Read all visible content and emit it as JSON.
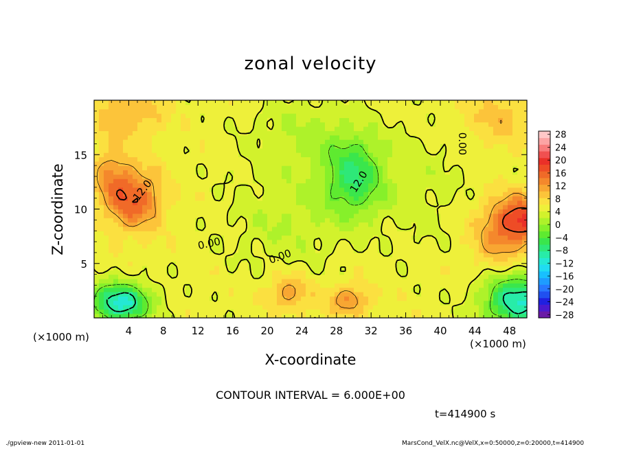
{
  "header": {
    "title": "zonal velocity"
  },
  "chart_data": {
    "type": "heatmap",
    "title": "zonal velocity",
    "xlabel": "X-coordinate",
    "ylabel": "Z-coordinate",
    "x_unit": "(×1000 m)",
    "xlim": [
      0,
      50
    ],
    "ylim": [
      0,
      20
    ],
    "x_ticks": [
      4,
      8,
      12,
      16,
      20,
      24,
      28,
      32,
      36,
      40,
      44,
      48
    ],
    "x_tick_labels": [
      "4",
      "8",
      "12",
      "16",
      "20",
      "24",
      "28",
      "32",
      "36",
      "40",
      "44",
      "48"
    ],
    "y_ticks": [
      5,
      10,
      15
    ],
    "y_tick_labels": [
      "5",
      "10",
      "15"
    ],
    "colorbar": {
      "levels": [
        -30,
        -28,
        -26,
        -24,
        -22,
        -20,
        -18,
        -16,
        -14,
        -12,
        -10,
        -8,
        -6,
        -4,
        -2,
        0,
        2,
        4,
        6,
        8,
        10,
        12,
        14,
        16,
        18,
        20,
        22,
        24,
        26,
        28,
        30
      ],
      "tick_values": [
        -28,
        -24,
        -20,
        -16,
        -12,
        -8,
        -4,
        0,
        4,
        8,
        12,
        16,
        20,
        24,
        28
      ],
      "tick_labels": [
        "−28",
        "−24",
        "−20",
        "−16",
        "−12",
        "−8",
        "−4",
        "0",
        "4",
        "8",
        "12",
        "16",
        "20",
        "24",
        "28"
      ]
    },
    "contour_labels": [
      {
        "text": "12.0",
        "x": 5.6,
        "z": 11.7,
        "angle": -52
      },
      {
        "text": "12.0",
        "x": 30.6,
        "z": 12.5,
        "angle": -58
      },
      {
        "text": "0.00",
        "x": 13.3,
        "z": 6.8,
        "angle": -12
      },
      {
        "text": "0.00",
        "x": 21.5,
        "z": 5.6,
        "angle": -20
      },
      {
        "text": "0.00",
        "x": 42.5,
        "z": 16.0,
        "angle": 90
      }
    ],
    "contour_interval_text": "CONTOUR INTERVAL = 6.000E+00",
    "time_text": "t=414900 s"
  },
  "footer": {
    "left": "./gpview-new  2011-01-01",
    "right": "MarsCond_VelX.nc@VelX,x=0:50000,z=0:20000,t=414900"
  },
  "colors": {
    "background": "#ffffff",
    "axis": "#000000",
    "palette": [
      "#6a1aa6",
      "#4a1acf",
      "#2020e0",
      "#2050f0",
      "#2878ff",
      "#1e9cff",
      "#18c0ff",
      "#20dcf2",
      "#24e8d4",
      "#28eca8",
      "#2ee878",
      "#3ae64c",
      "#5eea30",
      "#86f02a",
      "#aef22a",
      "#d2f22c",
      "#eef03a",
      "#fbe040",
      "#fcc43a",
      "#f8a632",
      "#f4882c",
      "#f06a28",
      "#ee4c26",
      "#ea3028",
      "#f05050",
      "#f87c7c",
      "#fca4a4",
      "#ffc8c8"
    ]
  }
}
